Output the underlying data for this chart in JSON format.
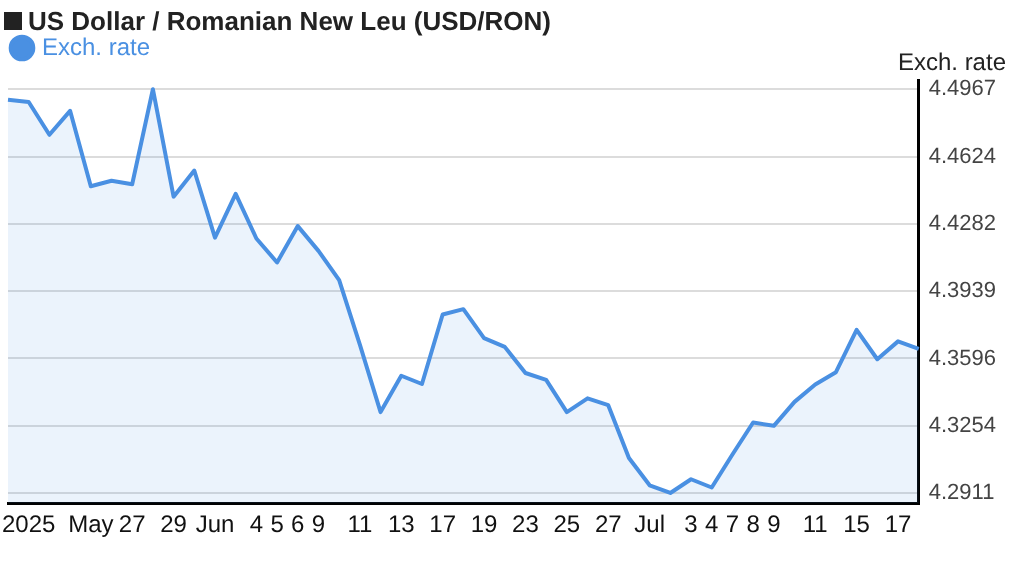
{
  "chart_data": {
    "type": "area",
    "title": "US Dollar / Romanian New Leu (USD/RON)",
    "ylabel": "Exch. rate",
    "categories": [
      null,
      "2025",
      null,
      null,
      "May",
      null,
      "27",
      null,
      "29",
      null,
      "Jun",
      null,
      "4",
      "5",
      "6",
      "9",
      null,
      "11",
      null,
      "13",
      null,
      "17",
      null,
      "19",
      null,
      "23",
      null,
      "25",
      null,
      "27",
      null,
      "Jul",
      null,
      "3",
      "4",
      "7",
      "8",
      "9",
      null,
      "11",
      null,
      "15",
      null,
      "17",
      null
    ],
    "series": [
      {
        "name": "Exch. rate",
        "color": "#4a90e2",
        "values": [
          4.4913,
          4.4902,
          4.4735,
          4.4857,
          4.4473,
          4.4501,
          4.4483,
          4.4967,
          4.442,
          4.4553,
          4.4211,
          4.4434,
          4.4207,
          4.4085,
          4.427,
          4.4144,
          4.3995,
          4.3666,
          4.3323,
          4.3508,
          4.3466,
          4.382,
          4.3847,
          4.37,
          4.3655,
          4.3522,
          4.3487,
          4.3323,
          4.3393,
          4.3358,
          4.3089,
          4.295,
          4.2911,
          4.2981,
          4.2939,
          4.3107,
          4.327,
          4.3253,
          4.3375,
          4.3463,
          4.3526,
          4.3742,
          4.3592,
          4.3683,
          4.3645
        ]
      }
    ],
    "ylim": [
      4.2859,
      4.5014
    ],
    "yticks": [
      4.2911,
      4.3254,
      4.3596,
      4.3939,
      4.4282,
      4.4624,
      4.4967
    ],
    "grid": "y",
    "legend": "top left",
    "marker": "none",
    "line_style": "solid"
  }
}
